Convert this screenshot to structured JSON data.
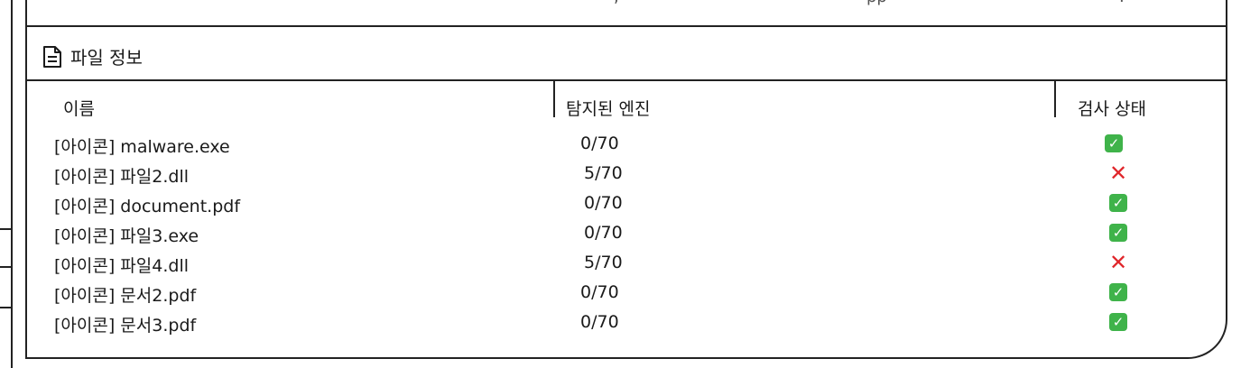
{
  "top_row": {
    "fragment_1": ",",
    "fragment_2": "pp",
    "fragment_3": "."
  },
  "section": {
    "title": "파일 정보",
    "icon": "file-text-icon"
  },
  "table": {
    "headers": [
      "이름",
      "탐지된 엔진",
      "검사 상태"
    ],
    "rows": [
      {
        "name": "[아이콘] malware.exe",
        "engines": "0/70",
        "status": "clean"
      },
      {
        "name": "[아이콘] 파일2.dll",
        "engines": "5/70",
        "status": "detected"
      },
      {
        "name": "[아이콘] document.pdf",
        "engines": "0/70",
        "status": "clean"
      },
      {
        "name": "[아이콘] 파일3.exe",
        "engines": "0/70",
        "status": "clean"
      },
      {
        "name": "[아이콘] 파일4.dll",
        "engines": "5/70",
        "status": "detected"
      },
      {
        "name": "[아이콘] 문서2.pdf",
        "engines": "0/70",
        "status": "clean"
      },
      {
        "name": "[아이콘] 문서3.pdf",
        "engines": "0/70",
        "status": "clean"
      }
    ]
  },
  "colors": {
    "clean": "#3fb34a",
    "detected": "#e0262b"
  }
}
